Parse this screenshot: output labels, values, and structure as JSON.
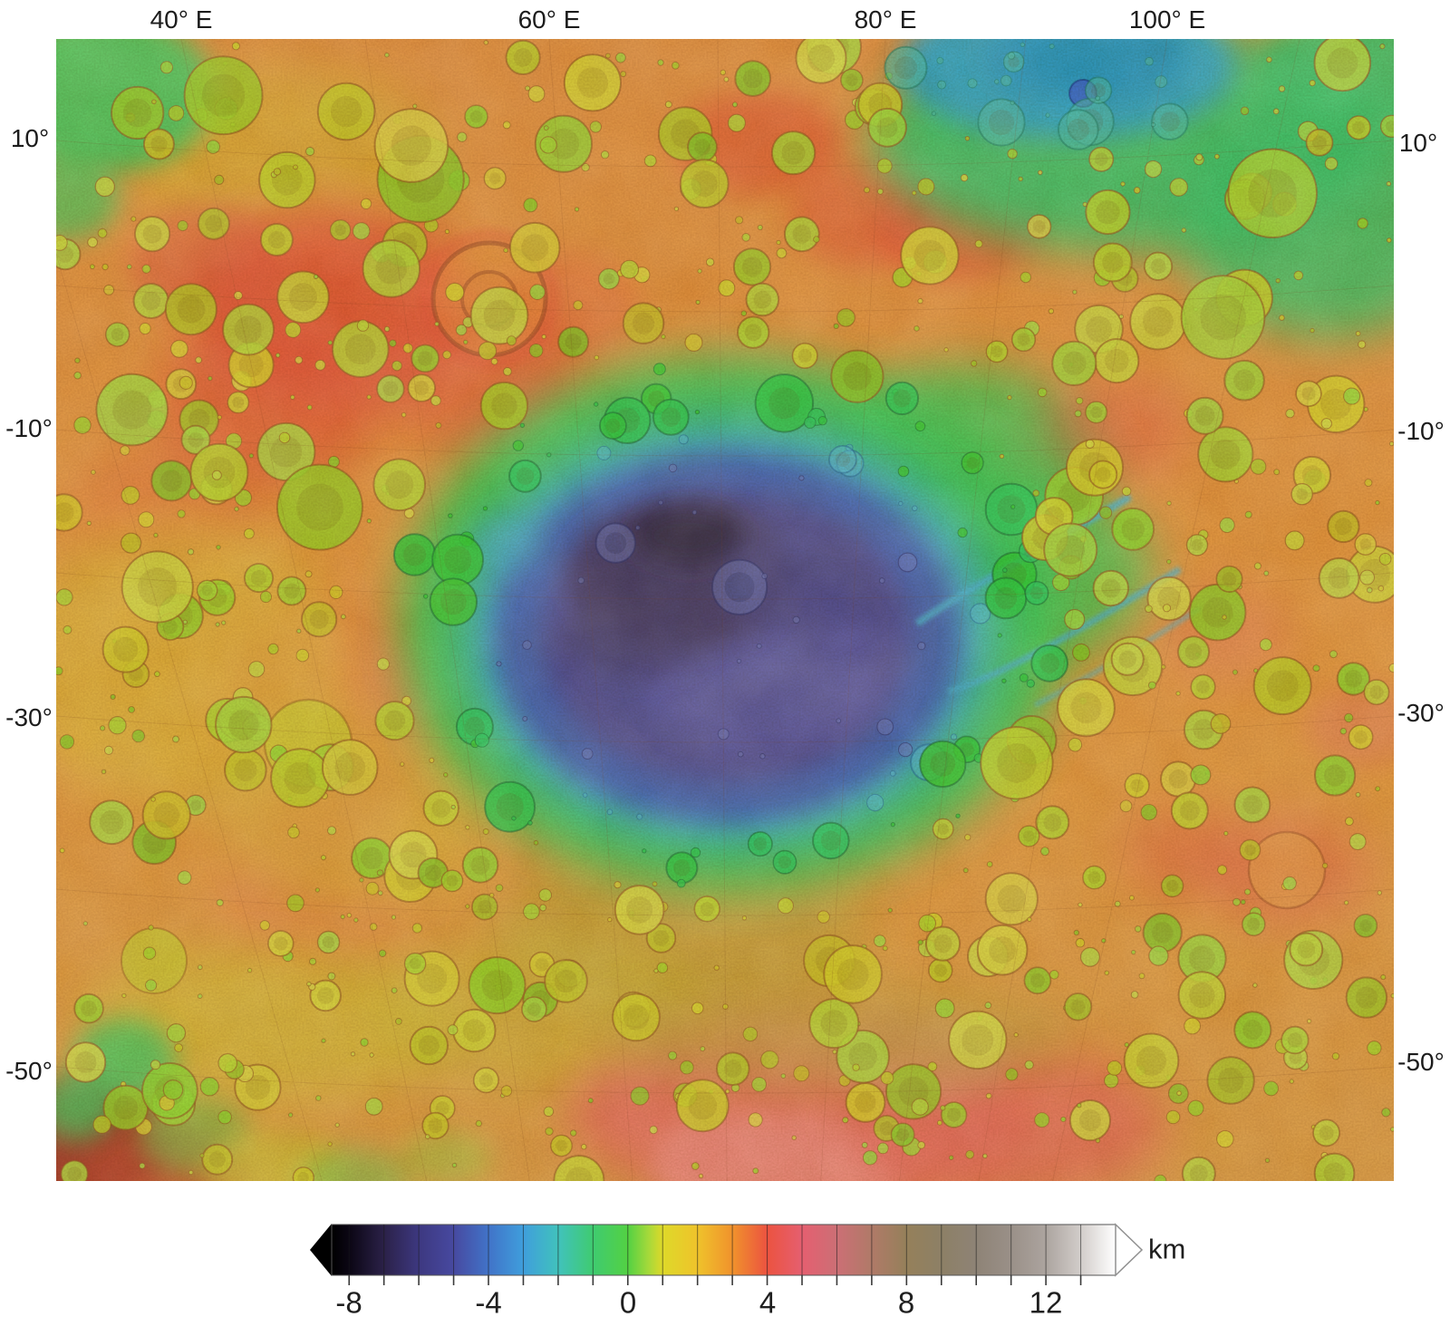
{
  "figure": {
    "kind": "colorized-topographic-map",
    "axes": {
      "top": [
        {
          "label": "40° E"
        },
        {
          "label": "60° E"
        },
        {
          "label": "80° E"
        },
        {
          "label": "100° E"
        }
      ],
      "left": [
        {
          "label": "10°"
        },
        {
          "label": "-10°"
        },
        {
          "label": "-30°"
        },
        {
          "label": "-50°"
        }
      ],
      "right": [
        {
          "label": "10°"
        },
        {
          "label": "-10°"
        },
        {
          "label": "-30°"
        },
        {
          "label": "-50°"
        }
      ]
    },
    "colorbar": {
      "unit_label": "km",
      "tick_labels": [
        {
          "label": "-8",
          "value": -8
        },
        {
          "label": "-4",
          "value": -4
        },
        {
          "label": "0",
          "value": 0
        },
        {
          "label": "4",
          "value": 4
        },
        {
          "label": "8",
          "value": 8
        },
        {
          "label": "12",
          "value": 12
        }
      ],
      "scale_min_km": -8.5,
      "scale_max_km": 14,
      "segment_interval_km": 1,
      "low_arrow_color": "#000000",
      "high_arrow_color": "#ffffff",
      "gradient_stops": [
        {
          "km": -8.5,
          "color": "#000000"
        },
        {
          "km": -8.0,
          "color": "#0b0614"
        },
        {
          "km": -7.0,
          "color": "#2b2148"
        },
        {
          "km": -6.0,
          "color": "#3d3880"
        },
        {
          "km": -5.0,
          "color": "#4749a0"
        },
        {
          "km": -4.0,
          "color": "#4173c8"
        },
        {
          "km": -3.0,
          "color": "#3f9edc"
        },
        {
          "km": -2.0,
          "color": "#41c2bc"
        },
        {
          "km": -1.0,
          "color": "#3fcb70"
        },
        {
          "km": 0.0,
          "color": "#53d143"
        },
        {
          "km": 0.6,
          "color": "#a6d93a"
        },
        {
          "km": 1.0,
          "color": "#ded929"
        },
        {
          "km": 2.0,
          "color": "#efc32b"
        },
        {
          "km": 3.0,
          "color": "#f0922c"
        },
        {
          "km": 4.0,
          "color": "#ec5340"
        },
        {
          "km": 5.0,
          "color": "#e55f70"
        },
        {
          "km": 6.0,
          "color": "#cc6f75"
        },
        {
          "km": 7.0,
          "color": "#b07a68"
        },
        {
          "km": 8.0,
          "color": "#95805a"
        },
        {
          "km": 9.0,
          "color": "#8d8066"
        },
        {
          "km": 10.0,
          "color": "#8e8376"
        },
        {
          "km": 11.0,
          "color": "#9a9088"
        },
        {
          "km": 12.0,
          "color": "#aca49f"
        },
        {
          "km": 13.0,
          "color": "#d2cdca"
        },
        {
          "km": 14.0,
          "color": "#ffffff"
        }
      ]
    },
    "map_palette": {
      "plains_orange": "#e79740",
      "highland_red": "#e85336",
      "crater_yellow_green": "#c4d332",
      "lowland_green": "#3ecf58",
      "basin_cyan": "#46b2dd",
      "basin_blue": "#4a66bd",
      "basin_floor_slate": "#57529e",
      "basin_deepest": "#483b63",
      "northeast_lowland_blue": "#35a9d2",
      "south_rim_pink": "#ea6a5e",
      "bottom_left_dark_red": "#a23320"
    }
  }
}
